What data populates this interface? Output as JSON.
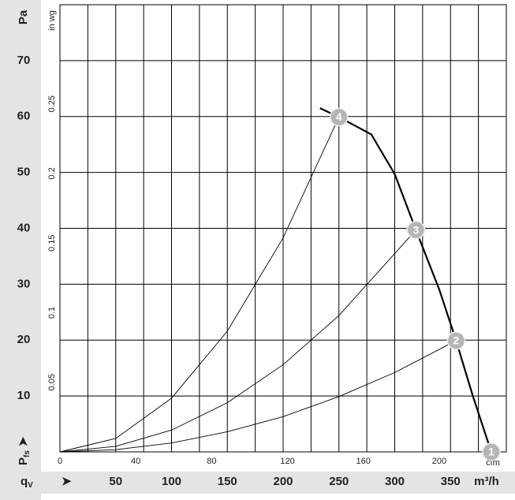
{
  "chart_data": {
    "type": "line",
    "y_label": "Pa",
    "y2_label": "in wg",
    "x_label": "m³/h",
    "x2_label": "cfm",
    "x_symbol": "q",
    "x_symbol_sub": "V",
    "y_symbol": "P",
    "y_symbol_sub": "fs",
    "xlim": [
      0,
      400
    ],
    "xticks": [
      50,
      100,
      150,
      200,
      250,
      300,
      350
    ],
    "xgrid": [
      25,
      50,
      75,
      100,
      125,
      150,
      175,
      200,
      225,
      250,
      275,
      300,
      325,
      350,
      375
    ],
    "x2lim": [
      0,
      235.4
    ],
    "x2ticks": [
      0,
      40,
      80,
      120,
      160,
      200
    ],
    "ylim": [
      0,
      80
    ],
    "yticks": [
      10,
      20,
      30,
      40,
      50,
      60,
      70
    ],
    "y2lim": [
      0,
      0.3212
    ],
    "y2ticks": [
      0.05,
      0.1,
      0.15,
      0.2,
      0.25
    ],
    "grid": true,
    "series": [
      {
        "name": "fan curve",
        "color": "#000000",
        "width": 2.2,
        "x": [
          233,
          250,
          279,
          300,
          319,
          340,
          355,
          370,
          386.5
        ],
        "values": [
          61.5,
          59.9,
          56.8,
          49.7,
          39.7,
          29,
          19.9,
          10,
          0
        ]
      },
      {
        "name": "system 4",
        "color": "#000000",
        "width": 0.9,
        "x": [
          0,
          50,
          100,
          150,
          200,
          250
        ],
        "values": [
          0,
          2.4,
          9.6,
          21.6,
          38.3,
          59.9
        ]
      },
      {
        "name": "system 3",
        "color": "#000000",
        "width": 0.9,
        "x": [
          0,
          50,
          100,
          150,
          200,
          250,
          319
        ],
        "values": [
          0,
          1.0,
          3.9,
          8.8,
          15.6,
          24.4,
          39.7
        ]
      },
      {
        "name": "system 2",
        "color": "#000000",
        "width": 0.9,
        "x": [
          0,
          50,
          100,
          150,
          200,
          250,
          300,
          355
        ],
        "values": [
          0,
          0.4,
          1.6,
          3.6,
          6.3,
          9.9,
          14.2,
          19.9
        ]
      }
    ],
    "points": [
      {
        "label": "1",
        "x": 386.5,
        "y": 0
      },
      {
        "label": "2",
        "x": 355,
        "y": 19.9
      },
      {
        "label": "3",
        "x": 319,
        "y": 39.7
      },
      {
        "label": "4",
        "x": 250,
        "y": 59.9
      }
    ]
  }
}
